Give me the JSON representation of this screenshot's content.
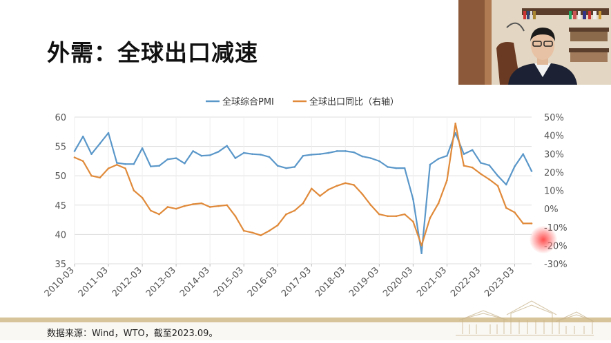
{
  "slide": {
    "title": "外需：全球出口减速",
    "source_note": "数据来源：Wind，WTO，截至2023.09。"
  },
  "webcam": {
    "description_icon": "presenter-webcam"
  },
  "colors": {
    "pmi": "#5a97c9",
    "exports": "#e08a3a",
    "grid": "#dddddd"
  },
  "chart_data": {
    "type": "line",
    "title": "",
    "x_tick_labels": [
      "2010-03",
      "2011-03",
      "2012-03",
      "2013-03",
      "2014-03",
      "2015-03",
      "2016-03",
      "2017-03",
      "2018-03",
      "2019-03",
      "2020-03",
      "2021-03",
      "2022-03",
      "2023-03"
    ],
    "x": [
      "2010-03",
      "2010-06",
      "2010-09",
      "2010-12",
      "2011-03",
      "2011-06",
      "2011-09",
      "2011-12",
      "2012-03",
      "2012-06",
      "2012-09",
      "2012-12",
      "2013-03",
      "2013-06",
      "2013-09",
      "2013-12",
      "2014-03",
      "2014-06",
      "2014-09",
      "2014-12",
      "2015-03",
      "2015-06",
      "2015-09",
      "2015-12",
      "2016-03",
      "2016-06",
      "2016-09",
      "2016-12",
      "2017-03",
      "2017-06",
      "2017-09",
      "2017-12",
      "2018-03",
      "2018-06",
      "2018-09",
      "2018-12",
      "2019-03",
      "2019-06",
      "2019-09",
      "2019-12",
      "2020-03",
      "2020-06",
      "2020-09",
      "2020-12",
      "2021-03",
      "2021-06",
      "2021-09",
      "2021-12",
      "2022-03",
      "2022-06",
      "2022-09",
      "2022-12",
      "2023-03",
      "2023-06",
      "2023-09"
    ],
    "y_left_range": [
      35,
      60
    ],
    "y_left_ticks": [
      "60",
      "55",
      "50",
      "45",
      "40",
      "35"
    ],
    "y_right_range": [
      -30,
      50
    ],
    "y_right_ticks": [
      "50%",
      "40%",
      "30%",
      "20%",
      "10%",
      "0%",
      "-10%",
      "-20%",
      "-30%"
    ],
    "legend_position": "top-center",
    "series": [
      {
        "name": "全球综合PMI",
        "axis": "left",
        "values": [
          54.2,
          56.7,
          53.7,
          55.5,
          57.3,
          52.2,
          52.0,
          52.0,
          54.7,
          51.6,
          51.7,
          52.8,
          53.0,
          52.1,
          54.2,
          53.4,
          53.5,
          54.1,
          55.1,
          53.0,
          53.9,
          53.7,
          53.6,
          53.2,
          51.7,
          51.3,
          51.5,
          53.4,
          53.6,
          53.7,
          53.9,
          54.2,
          54.2,
          54.0,
          53.3,
          53.0,
          52.5,
          51.5,
          51.3,
          51.3,
          46.0,
          36.8,
          51.9,
          52.9,
          53.4,
          57.3,
          53.7,
          54.4,
          52.2,
          51.8,
          50.0,
          48.5,
          51.6,
          53.7,
          50.8
        ]
      },
      {
        "name": "全球出口同比（右轴）",
        "axis": "right",
        "values": [
          28,
          26,
          18,
          17,
          22,
          24,
          22,
          10,
          6,
          -1,
          -3,
          1,
          0,
          1.5,
          2.5,
          3,
          1,
          1.5,
          2,
          -4,
          -12,
          -13,
          -14.5,
          -12,
          -9,
          -3,
          -1,
          3,
          11,
          7,
          10.5,
          12.5,
          14,
          13,
          8,
          2,
          -3,
          -4,
          -4,
          -3,
          -7,
          -20,
          -5,
          3,
          15.5,
          46.5,
          23.5,
          22.5,
          19,
          16,
          12.5,
          0.5,
          -2,
          -8,
          -8
        ]
      }
    ]
  }
}
